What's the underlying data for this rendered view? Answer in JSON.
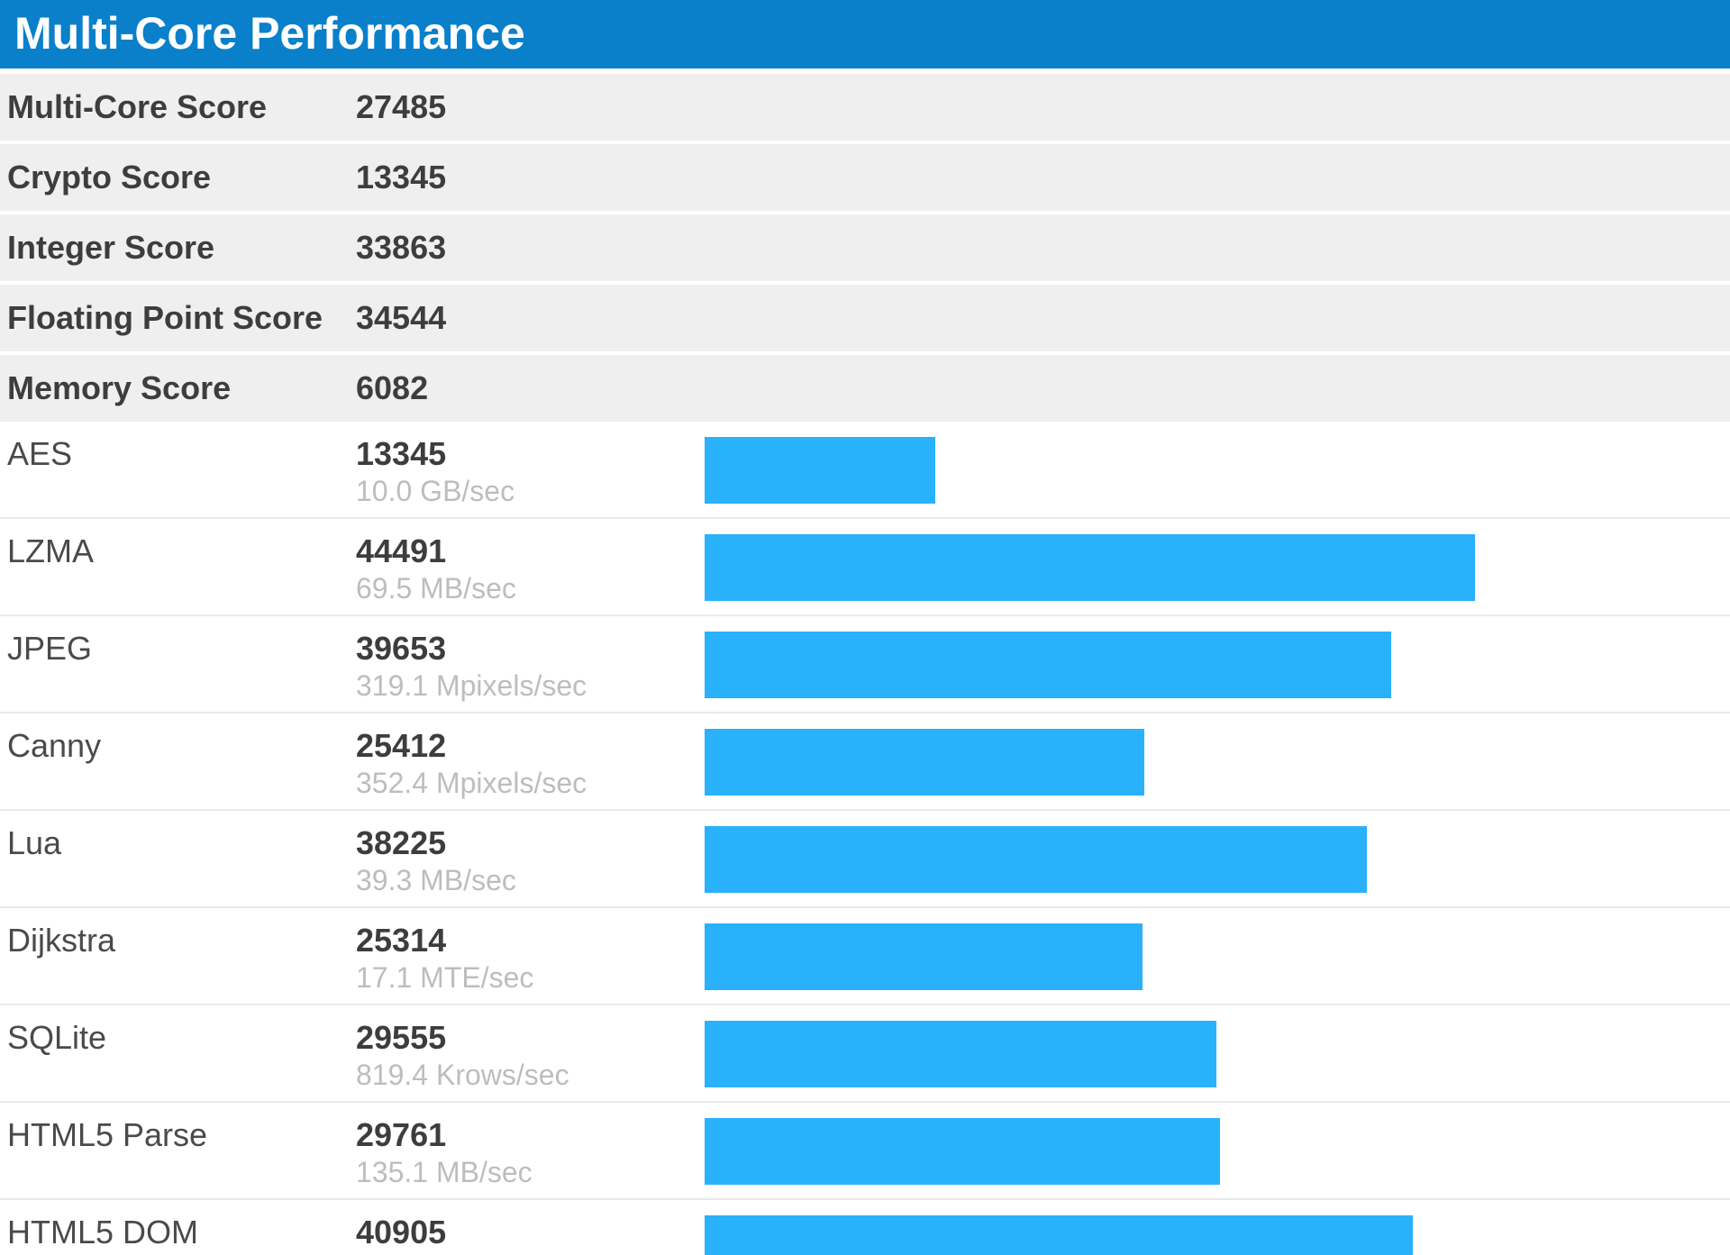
{
  "header": {
    "title": "Multi-Core Performance",
    "background_color": "#0a80ca",
    "text_color": "#ffffff"
  },
  "summary": {
    "rows": [
      {
        "label": "Multi-Core Score",
        "value": "27485"
      },
      {
        "label": "Crypto Score",
        "value": "13345"
      },
      {
        "label": "Integer Score",
        "value": "33863"
      },
      {
        "label": "Floating Point Score",
        "value": "34544"
      },
      {
        "label": "Memory Score",
        "value": "6082"
      }
    ],
    "row_background": "#efefef"
  },
  "chart_data": {
    "type": "bar",
    "orientation": "horizontal",
    "title": "Multi-Core Performance",
    "categories": [
      "AES",
      "LZMA",
      "JPEG",
      "Canny",
      "Lua",
      "Dijkstra",
      "SQLite",
      "HTML5 Parse",
      "HTML5 DOM"
    ],
    "values": [
      13345,
      44491,
      39653,
      25412,
      38225,
      25314,
      29555,
      29761,
      40905
    ],
    "units": [
      "10.0 GB/sec",
      "69.5 MB/sec",
      "319.1 Mpixels/sec",
      "352.4 Mpixels/sec",
      "39.3 MB/sec",
      "17.1 MTE/sec",
      "819.4 Krows/sec",
      "135.1 MB/sec",
      ""
    ],
    "xlim": [
      0,
      44491
    ],
    "max_score": 44491,
    "bar_color": "#29b1fc",
    "grid": false,
    "legend": false,
    "note": "bar lengths proportional to score relative to max score (LZMA 44491); last row (HTML5 DOM) clipped by viewport bottom"
  }
}
